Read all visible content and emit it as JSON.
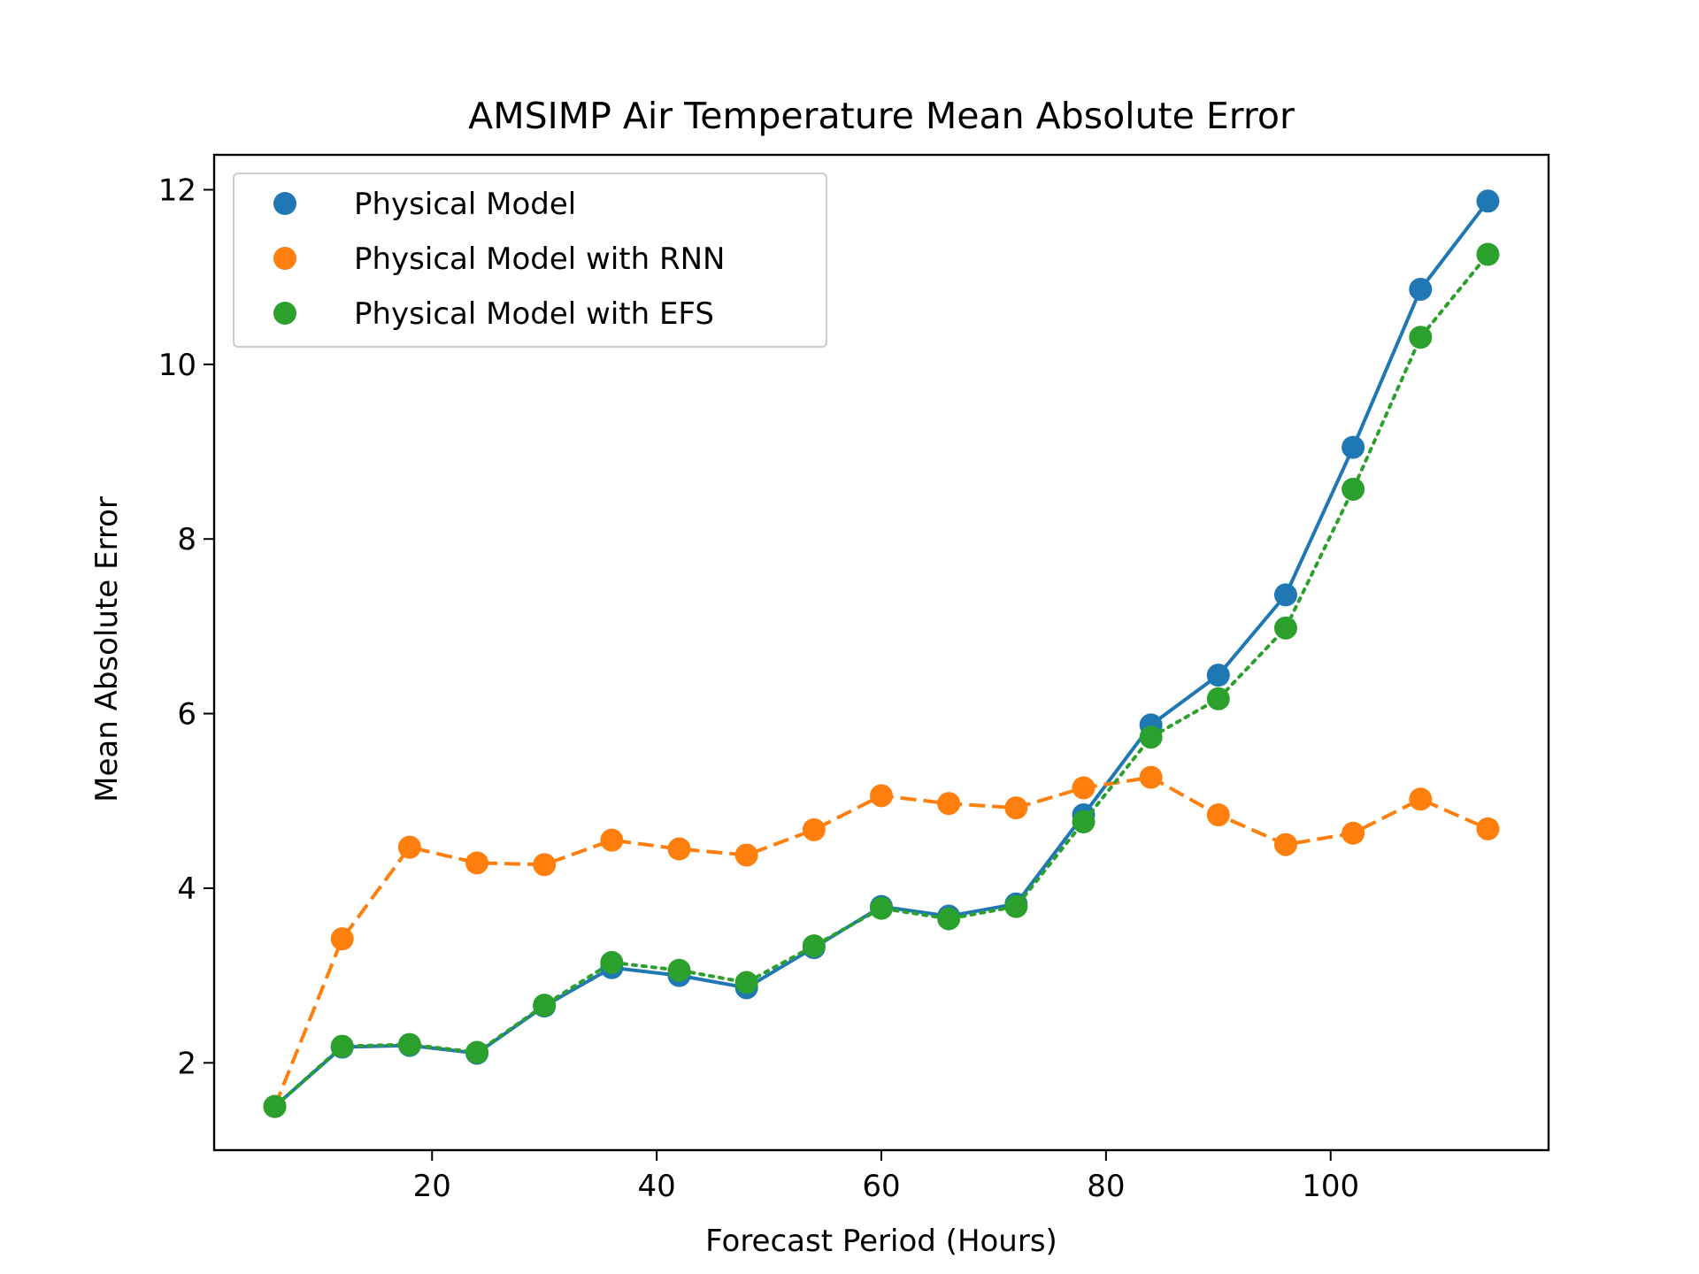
{
  "chart_data": {
    "type": "line",
    "title": "AMSIMP Air Temperature Mean Absolute Error",
    "xlabel": "Forecast Period (Hours)",
    "ylabel": "Mean Absolute Error",
    "xlim": [
      0.6,
      119.4
    ],
    "ylim": [
      1.0,
      12.4
    ],
    "xticks": [
      20,
      40,
      60,
      80,
      100
    ],
    "yticks": [
      2,
      4,
      6,
      8,
      10,
      12
    ],
    "grid": false,
    "legend_position": "top-left",
    "x": [
      6,
      12,
      18,
      24,
      30,
      36,
      42,
      48,
      54,
      60,
      66,
      72,
      78,
      84,
      90,
      96,
      102,
      108,
      114
    ],
    "series": [
      {
        "name": "Physical Model",
        "color": "#1f77b4",
        "line_style": "solid",
        "values": [
          1.5,
          2.18,
          2.2,
          2.11,
          2.65,
          3.09,
          3.0,
          2.86,
          3.32,
          3.79,
          3.68,
          3.82,
          4.84,
          5.87,
          6.44,
          7.36,
          9.05,
          10.86,
          11.87
        ]
      },
      {
        "name": "Physical Model with RNN",
        "color": "#ff7f0e",
        "line_style": "dashed",
        "values": [
          1.5,
          3.42,
          4.47,
          4.29,
          4.27,
          4.55,
          4.45,
          4.38,
          4.67,
          5.06,
          4.97,
          4.92,
          5.15,
          5.27,
          4.84,
          4.5,
          4.63,
          5.02,
          4.68
        ]
      },
      {
        "name": "Physical Model with EFS",
        "color": "#2ca02c",
        "line_style": "dotted",
        "values": [
          1.5,
          2.19,
          2.21,
          2.12,
          2.66,
          3.15,
          3.06,
          2.92,
          3.34,
          3.77,
          3.65,
          3.79,
          4.76,
          5.73,
          6.17,
          6.98,
          8.57,
          10.31,
          11.26
        ]
      }
    ]
  }
}
